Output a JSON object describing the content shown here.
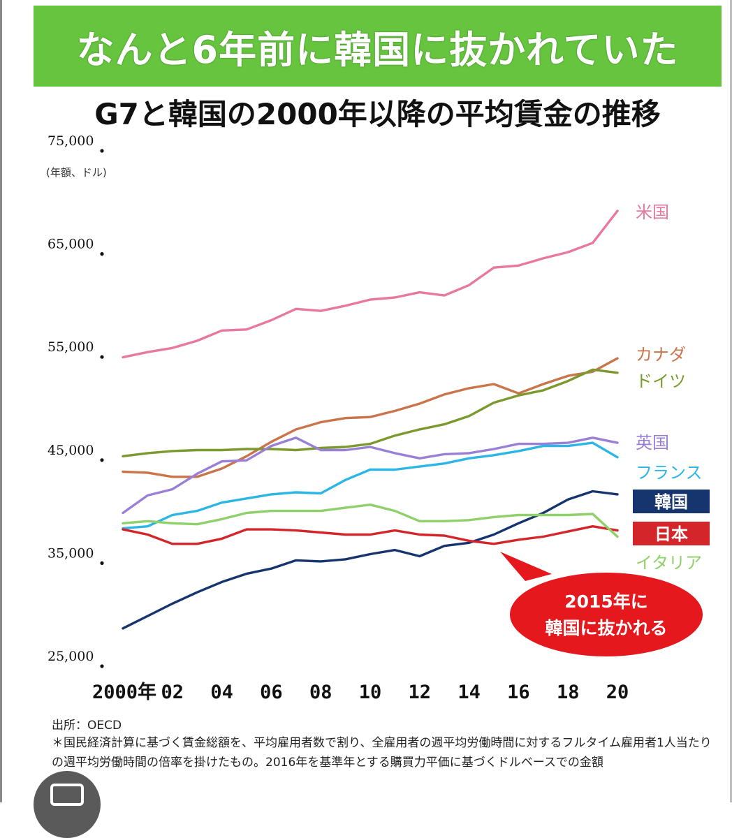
{
  "banner": {
    "text": "なんと6年前に韓国に抜かれていた"
  },
  "chart_data": {
    "type": "line",
    "title": "G7と韓国の2000年以降の平均賃金の推移",
    "unit_label": "(年額、ドル)",
    "ylim": [
      25000,
      75000
    ],
    "xlim": [
      2000,
      2020
    ],
    "y_ticks": [
      {
        "value": 75000,
        "label": "75,000"
      },
      {
        "value": 65000,
        "label": "65,000"
      },
      {
        "value": 55000,
        "label": "55,000"
      },
      {
        "value": 45000,
        "label": "45,000"
      },
      {
        "value": 35000,
        "label": "35,000"
      },
      {
        "value": 25000,
        "label": "25,000"
      }
    ],
    "x_ticks": [
      {
        "value": 2000,
        "label": "2000年"
      },
      {
        "value": 2002,
        "label": "02"
      },
      {
        "value": 2004,
        "label": "04"
      },
      {
        "value": 2006,
        "label": "06"
      },
      {
        "value": 2008,
        "label": "08"
      },
      {
        "value": 2010,
        "label": "10"
      },
      {
        "value": 2012,
        "label": "12"
      },
      {
        "value": 2014,
        "label": "14"
      },
      {
        "value": 2016,
        "label": "16"
      },
      {
        "value": 2018,
        "label": "18"
      },
      {
        "value": 2020,
        "label": "20"
      }
    ],
    "x": [
      2000,
      2001,
      2002,
      2003,
      2004,
      2005,
      2006,
      2007,
      2008,
      2009,
      2010,
      2011,
      2012,
      2013,
      2014,
      2015,
      2016,
      2017,
      2018,
      2019,
      2020
    ],
    "series": [
      {
        "name": "米国",
        "color": "#e8789e",
        "label_style": "plain",
        "values": [
          54700,
          55200,
          55600,
          56300,
          57300,
          57400,
          58300,
          59400,
          59200,
          59700,
          60300,
          60500,
          61000,
          60700,
          61700,
          63400,
          63600,
          64300,
          64900,
          65800,
          68900
        ]
      },
      {
        "name": "カナダ",
        "color": "#c9744a",
        "label_style": "plain",
        "values": [
          43600,
          43500,
          43100,
          43100,
          43900,
          45100,
          46500,
          47700,
          48400,
          48800,
          48900,
          49500,
          50200,
          51100,
          51700,
          52100,
          51200,
          52100,
          52900,
          53300,
          54600
        ]
      },
      {
        "name": "ドイツ",
        "color": "#7a9a2e",
        "label_style": "plain",
        "values": [
          45100,
          45400,
          45600,
          45700,
          45700,
          45800,
          45800,
          45700,
          45900,
          46000,
          46300,
          47100,
          47700,
          48200,
          49000,
          50300,
          51000,
          51500,
          52400,
          53500,
          53200
        ]
      },
      {
        "name": "英国",
        "color": "#9a7fd6",
        "label_style": "plain",
        "values": [
          39600,
          41300,
          41900,
          43400,
          44600,
          44700,
          46100,
          46900,
          45700,
          45700,
          46000,
          45400,
          44900,
          45300,
          45400,
          45800,
          46300,
          46300,
          46400,
          46900,
          46400
        ]
      },
      {
        "name": "フランス",
        "color": "#2cb6e6",
        "label_style": "plain",
        "values": [
          38100,
          38300,
          39400,
          39800,
          40600,
          41000,
          41400,
          41600,
          41500,
          42800,
          43800,
          43800,
          44100,
          44400,
          44900,
          45200,
          45600,
          46100,
          46100,
          46400,
          45000
        ]
      },
      {
        "name": "韓国",
        "color": "#16356e",
        "label_style": "box",
        "values": [
          28400,
          29600,
          30800,
          31900,
          32900,
          33700,
          34200,
          35000,
          34900,
          35100,
          35600,
          36000,
          35400,
          36400,
          36700,
          37500,
          38600,
          39600,
          40900,
          41700,
          41400
        ]
      },
      {
        "name": "日本",
        "color": "#d4262a",
        "label_style": "box",
        "values": [
          38000,
          37500,
          36600,
          36600,
          37100,
          38000,
          38000,
          37900,
          37700,
          37500,
          37500,
          37900,
          37500,
          37400,
          36900,
          36600,
          37000,
          37300,
          37800,
          38300,
          37900
        ]
      },
      {
        "name": "イタリア",
        "color": "#8fd06a",
        "label_style": "plain",
        "values": [
          38600,
          38800,
          38600,
          38500,
          39000,
          39600,
          39800,
          39800,
          39800,
          40100,
          40400,
          39800,
          38800,
          38800,
          38900,
          39200,
          39400,
          39400,
          39400,
          39500,
          37300
        ]
      }
    ],
    "annotation": {
      "line1": "2015年に",
      "line2": "韓国に抜かれる",
      "fill": "#e5181e",
      "text_color": "#ffffff"
    }
  },
  "source": "出所：OECD",
  "note": "＊国民経済計算に基づく賃金総額を、平均雇用者数で割り、全雇用者の週平均労働時間に対するフルタイム雇用者1人当たりの週平均労働時間の倍率を掛けたもの。2016年を基準年とする購買力平価に基づくドルベースでの金額"
}
